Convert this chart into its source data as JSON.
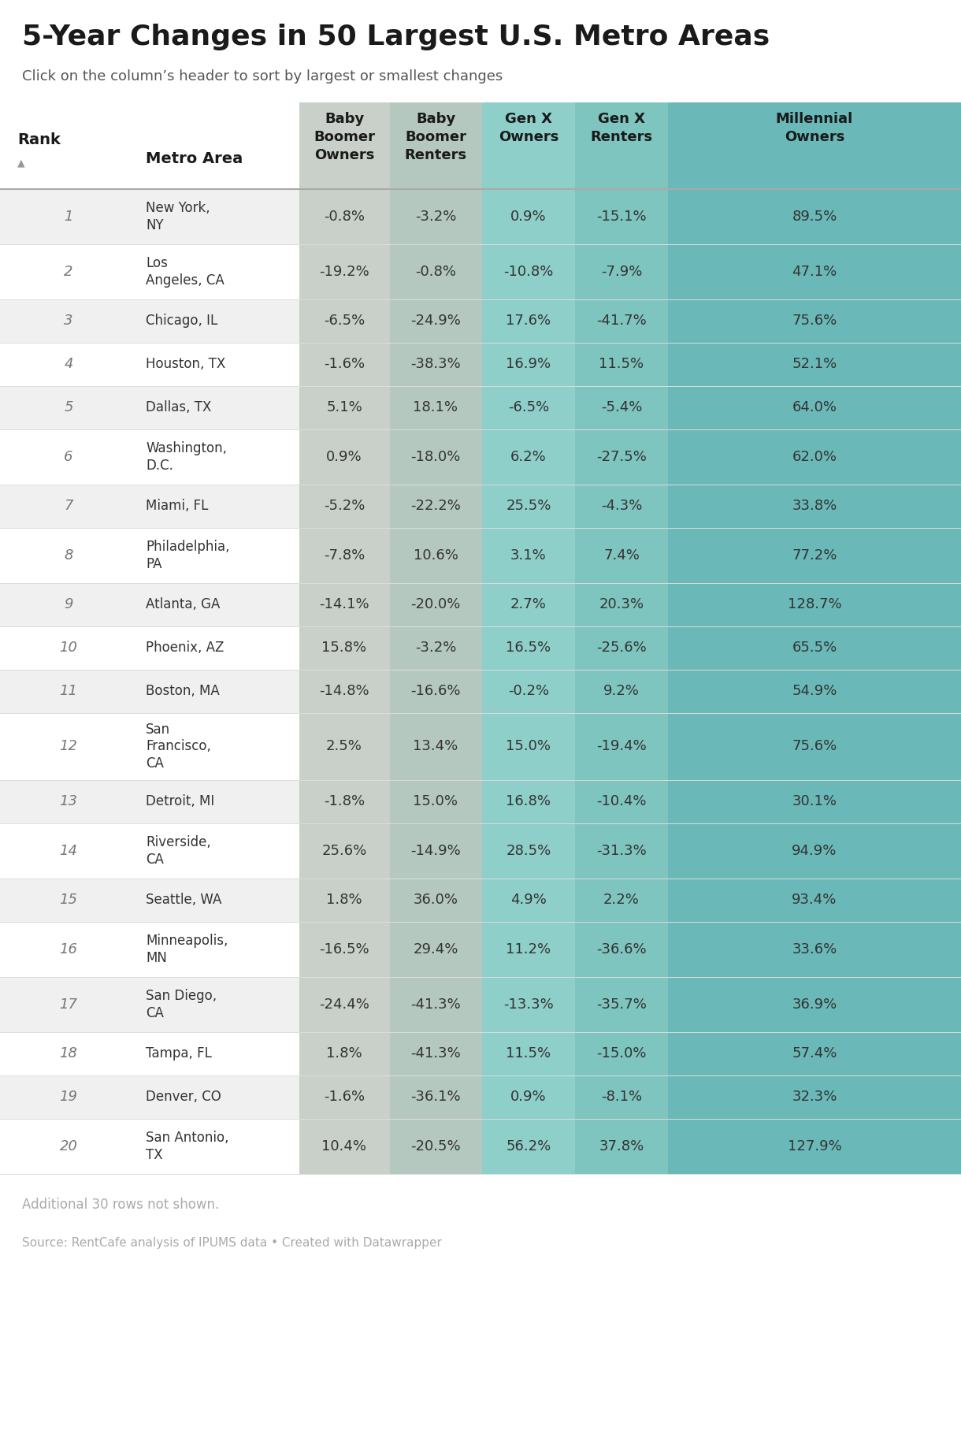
{
  "title": "5-Year Changes in 50 Largest U.S. Metro Areas",
  "subtitle": "Click on the column’s header to sort by largest or smallest changes",
  "footer_note": "Additional 30 rows not shown.",
  "source": "Source: RentCafe analysis of IPUMS data • Created with Datawrapper",
  "rows": [
    [
      1,
      "New York,\nNY",
      "-0.8%",
      "-3.2%",
      "0.9%",
      "-15.1%",
      "89.5%"
    ],
    [
      2,
      "Los\nAngeles, CA",
      "-19.2%",
      "-0.8%",
      "-10.8%",
      "-7.9%",
      "47.1%"
    ],
    [
      3,
      "Chicago, IL",
      "-6.5%",
      "-24.9%",
      "17.6%",
      "-41.7%",
      "75.6%"
    ],
    [
      4,
      "Houston, TX",
      "-1.6%",
      "-38.3%",
      "16.9%",
      "11.5%",
      "52.1%"
    ],
    [
      5,
      "Dallas, TX",
      "5.1%",
      "18.1%",
      "-6.5%",
      "-5.4%",
      "64.0%"
    ],
    [
      6,
      "Washington,\nD.C.",
      "0.9%",
      "-18.0%",
      "6.2%",
      "-27.5%",
      "62.0%"
    ],
    [
      7,
      "Miami, FL",
      "-5.2%",
      "-22.2%",
      "25.5%",
      "-4.3%",
      "33.8%"
    ],
    [
      8,
      "Philadelphia,\nPA",
      "-7.8%",
      "10.6%",
      "3.1%",
      "7.4%",
      "77.2%"
    ],
    [
      9,
      "Atlanta, GA",
      "-14.1%",
      "-20.0%",
      "2.7%",
      "20.3%",
      "128.7%"
    ],
    [
      10,
      "Phoenix, AZ",
      "15.8%",
      "-3.2%",
      "16.5%",
      "-25.6%",
      "65.5%"
    ],
    [
      11,
      "Boston, MA",
      "-14.8%",
      "-16.6%",
      "-0.2%",
      "9.2%",
      "54.9%"
    ],
    [
      12,
      "San\nFrancisco,\nCA",
      "2.5%",
      "13.4%",
      "15.0%",
      "-19.4%",
      "75.6%"
    ],
    [
      13,
      "Detroit, MI",
      "-1.8%",
      "15.0%",
      "16.8%",
      "-10.4%",
      "30.1%"
    ],
    [
      14,
      "Riverside,\nCA",
      "25.6%",
      "-14.9%",
      "28.5%",
      "-31.3%",
      "94.9%"
    ],
    [
      15,
      "Seattle, WA",
      "1.8%",
      "36.0%",
      "4.9%",
      "2.2%",
      "93.4%"
    ],
    [
      16,
      "Minneapolis,\nMN",
      "-16.5%",
      "29.4%",
      "11.2%",
      "-36.6%",
      "33.6%"
    ],
    [
      17,
      "San Diego,\nCA",
      "-24.4%",
      "-41.3%",
      "-13.3%",
      "-35.7%",
      "36.9%"
    ],
    [
      18,
      "Tampa, FL",
      "1.8%",
      "-41.3%",
      "11.5%",
      "-15.0%",
      "57.4%"
    ],
    [
      19,
      "Denver, CO",
      "-1.6%",
      "-36.1%",
      "0.9%",
      "-8.1%",
      "32.3%"
    ],
    [
      20,
      "San Antonio,\nTX",
      "10.4%",
      "-20.5%",
      "56.2%",
      "37.8%",
      "127.9%"
    ]
  ],
  "col_bg": [
    "#c9d0c9",
    "#b5c8c0",
    "#8ecfca",
    "#7ec4bf",
    "#6ab8b8"
  ],
  "row_bg_odd": "#f0f0f0",
  "row_bg_even": "#ffffff",
  "header_bg": "#ffffff",
  "title_color": "#1a1a1a",
  "subtitle_color": "#555555",
  "header_text_color": "#1a1a1a",
  "data_text_color": "#333333",
  "rank_text_color": "#777777",
  "metro_text_color": "#333333",
  "footer_color": "#aaaaaa",
  "line_color_heavy": "#aaaaaa",
  "line_color_light": "#dddddd"
}
